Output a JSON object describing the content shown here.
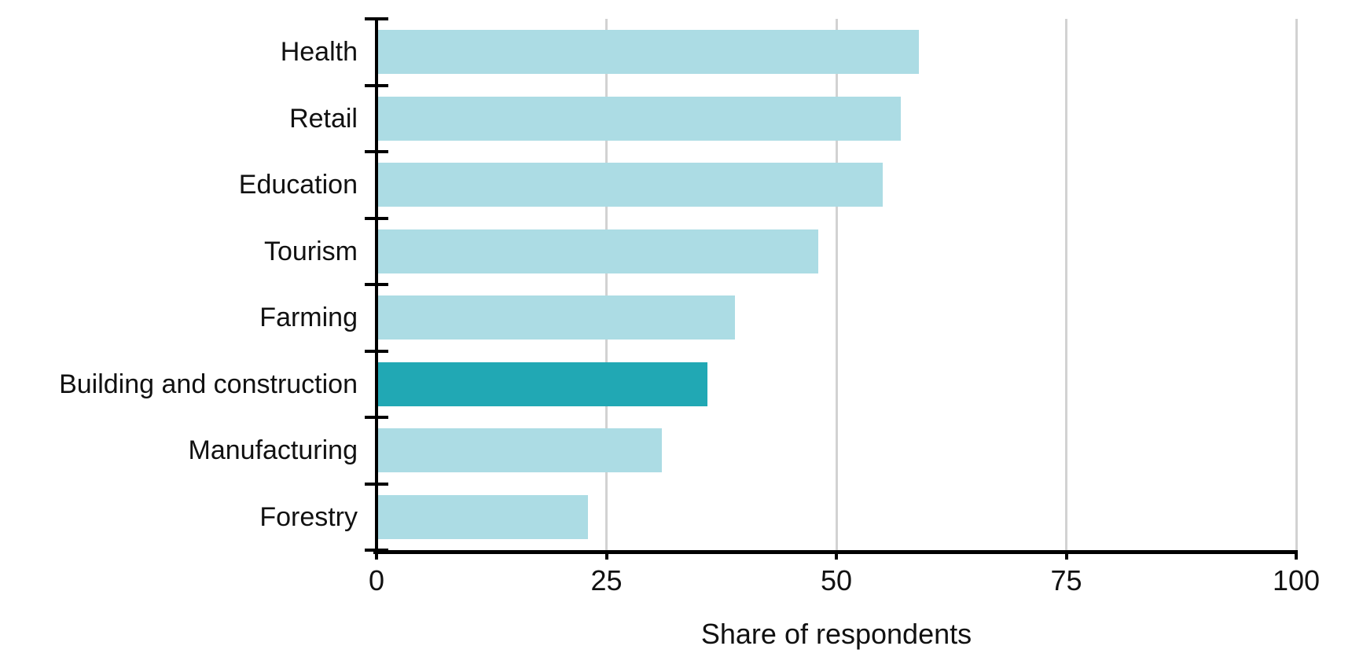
{
  "chart_data": {
    "type": "bar",
    "orientation": "horizontal",
    "categories": [
      "Health",
      "Retail",
      "Education",
      "Tourism",
      "Farming",
      "Building and construction",
      "Manufacturing",
      "Forestry"
    ],
    "values": [
      59,
      57,
      55,
      48,
      39,
      36,
      31,
      23
    ],
    "highlighted_category": "Building and construction",
    "title": "",
    "xlabel": "Share of respondents",
    "ylabel": "",
    "xlim": [
      0,
      100
    ],
    "xticks": [
      0,
      25,
      50,
      75,
      100
    ],
    "grid": true,
    "legend": "none",
    "colors": {
      "bar": "#ACDCE4",
      "bar_highlight": "#21A8B4",
      "gridline": "#D2D2D2",
      "axis": "#000000",
      "text": "#111111"
    }
  }
}
